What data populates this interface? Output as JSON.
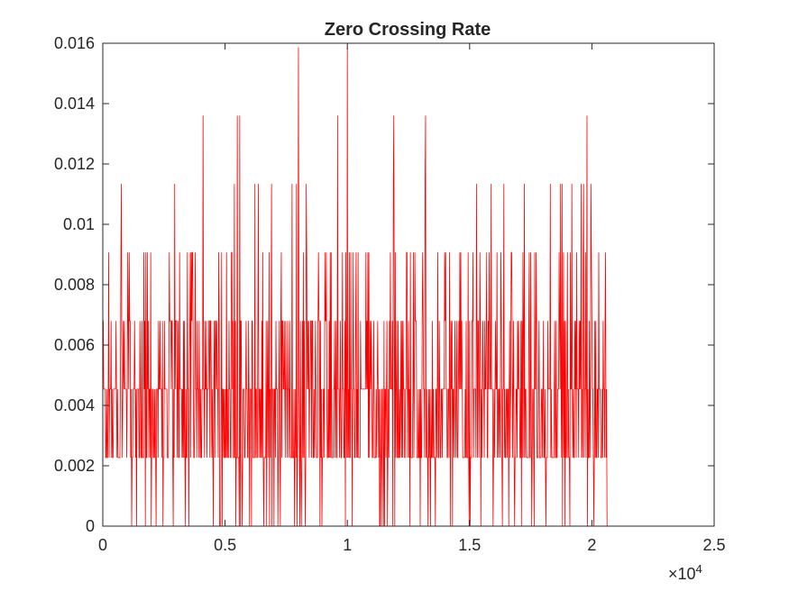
{
  "chart_data": {
    "type": "line",
    "title": "Zero Crossing Rate",
    "xlabel": "",
    "ylabel": "",
    "xlim": [
      0,
      25000
    ],
    "ylim": [
      0,
      0.016
    ],
    "x_ticks": [
      0,
      5000,
      10000,
      15000,
      20000,
      25000
    ],
    "x_tick_labels": [
      "0",
      "0.5",
      "1",
      "1.5",
      "2",
      "2.5"
    ],
    "x_exponent_label": "×10",
    "x_exponent": "4",
    "y_ticks": [
      0,
      0.002,
      0.004,
      0.006,
      0.008,
      0.01,
      0.012,
      0.014,
      0.016
    ],
    "y_tick_labels": [
      "0",
      "0.002",
      "0.004",
      "0.006",
      "0.008",
      "0.01",
      "0.012",
      "0.014",
      "0.016"
    ],
    "grid": false,
    "box": true,
    "series": [
      {
        "color": "#ff0000",
        "levels": [
          0,
          0.00227,
          0.00454,
          0.0068,
          0.00907,
          0.01134,
          0.0136,
          0.01587
        ],
        "signal_end_x": 20600,
        "last_x": 21200,
        "spikes": [
          {
            "x": 8000,
            "y": 0.01587
          },
          {
            "x": 10000,
            "y": 0.01587
          },
          {
            "x": 4100,
            "y": 0.0136
          },
          {
            "x": 5500,
            "y": 0.0136
          },
          {
            "x": 5600,
            "y": 0.0136
          },
          {
            "x": 9600,
            "y": 0.0136
          },
          {
            "x": 11900,
            "y": 0.0136
          },
          {
            "x": 13200,
            "y": 0.0136
          },
          {
            "x": 19800,
            "y": 0.0136
          }
        ]
      }
    ]
  }
}
